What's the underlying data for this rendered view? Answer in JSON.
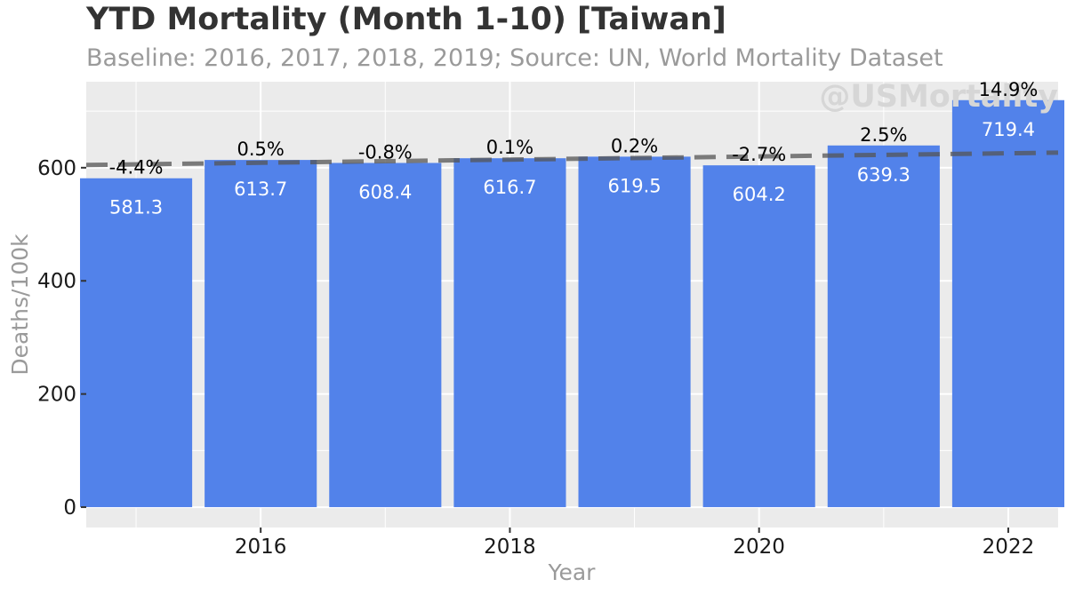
{
  "chart_data": {
    "type": "bar",
    "title": "YTD Mortality (Month 1-10) [Taiwan]",
    "subtitle": "Baseline: 2016, 2017, 2018, 2019; Source: UN, World Mortality Dataset",
    "xlabel": "Year",
    "ylabel": "Deaths/100k",
    "watermark": "@USMortality",
    "categories": [
      2015,
      2016,
      2017,
      2018,
      2019,
      2020,
      2021,
      2022
    ],
    "values": [
      581.3,
      613.7,
      608.4,
      616.7,
      619.5,
      604.2,
      639.3,
      719.4
    ],
    "value_labels": [
      "581.3",
      "613.7",
      "608.4",
      "616.7",
      "619.5",
      "604.2",
      "639.3",
      "719.4"
    ],
    "pct_labels": [
      "-4.4%",
      "0.5%",
      "-0.8%",
      "0.1%",
      "0.2%",
      "-2.7%",
      "2.5%",
      "14.9%"
    ],
    "trend_line": {
      "x": [
        2014.6,
        2022.4
      ],
      "y": [
        604.8,
        626.6
      ]
    },
    "x_ticks": [
      2016,
      2018,
      2020,
      2022
    ],
    "y_ticks": [
      0,
      200,
      400,
      600
    ],
    "xlim": [
      2014.6,
      2022.4
    ],
    "ylim": [
      -36,
      752
    ],
    "grid": true,
    "legend": "none",
    "colors": {
      "bar": "#5282ea",
      "panel": "#ebebeb",
      "grid": "#ffffff",
      "trend": "#555555",
      "value_label": "#ffffff",
      "pct_label": "#000000",
      "axis_title": "#9a9a9a",
      "watermark": "#d6d6d6"
    }
  }
}
